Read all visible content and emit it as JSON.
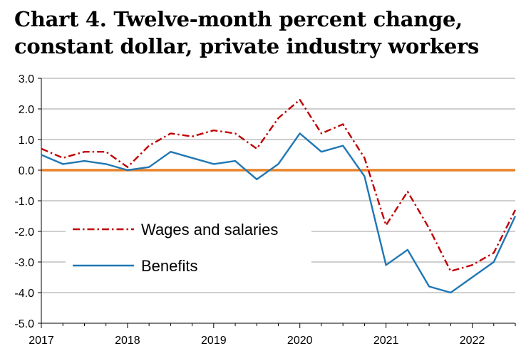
{
  "chart_data": {
    "type": "line",
    "title": "Chart 4. Twelve-month percent change, constant dollar, private industry workers",
    "xlabel": "",
    "ylabel": "",
    "ylim": [
      -5.0,
      3.0
    ],
    "xlim": [
      2017.0,
      2022.5
    ],
    "y_ticks": [
      "3.0",
      "2.0",
      "1.0",
      "0.0",
      "-1.0",
      "-2.0",
      "-3.0",
      "-4.0",
      "-5.0"
    ],
    "x_ticks": [
      "2017",
      "2018",
      "2019",
      "2020",
      "2021",
      "2022"
    ],
    "grid": true,
    "zero_line_color": "#e8822a",
    "legend_position": "bottom-left",
    "x": [
      2017.0,
      2017.25,
      2017.5,
      2017.75,
      2018.0,
      2018.25,
      2018.5,
      2018.75,
      2019.0,
      2019.25,
      2019.5,
      2019.75,
      2020.0,
      2020.25,
      2020.5,
      2020.75,
      2021.0,
      2021.25,
      2021.5,
      2021.75,
      2022.0,
      2022.25,
      2022.5
    ],
    "series": [
      {
        "name": "Wages and salaries",
        "color": "#c00000",
        "style": "dash-dot",
        "values": [
          0.7,
          0.4,
          0.6,
          0.6,
          0.1,
          0.8,
          1.2,
          1.1,
          1.3,
          1.2,
          0.7,
          1.7,
          2.3,
          1.2,
          1.5,
          0.4,
          -1.8,
          -0.7,
          -1.9,
          -3.3,
          -3.1,
          -2.7,
          -1.3
        ]
      },
      {
        "name": "Benefits",
        "color": "#1f77b4",
        "style": "solid",
        "values": [
          0.5,
          0.2,
          0.3,
          0.2,
          0.0,
          0.1,
          0.6,
          0.4,
          0.2,
          0.3,
          -0.3,
          0.2,
          1.2,
          0.6,
          0.8,
          -0.2,
          -3.1,
          -2.6,
          -3.8,
          -4.0,
          -3.5,
          -3.0,
          -1.5
        ]
      }
    ]
  }
}
